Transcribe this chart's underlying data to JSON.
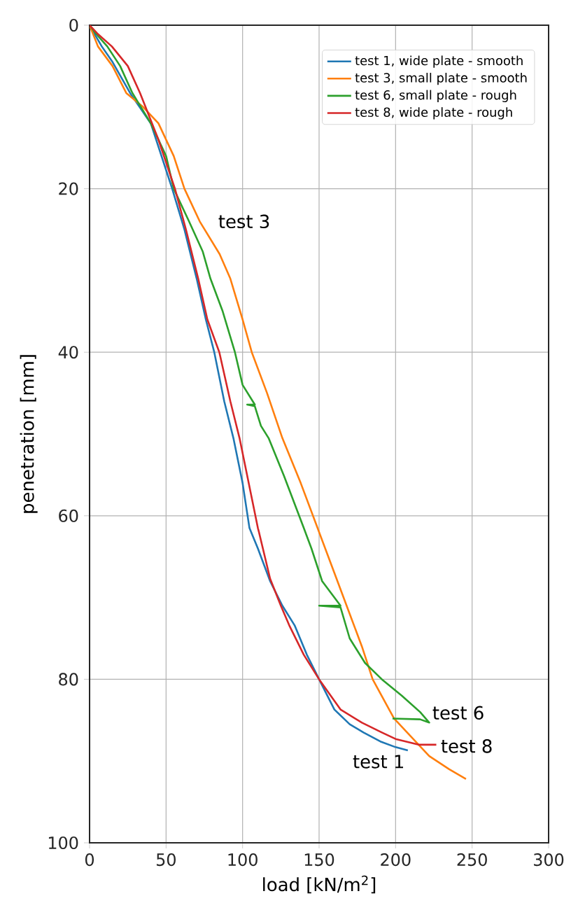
{
  "chart_data": {
    "type": "line",
    "xlabel": "load  [kN/m$^{2}$]",
    "ylabel": "penetration [mm]",
    "xlim": [
      0,
      300
    ],
    "ylim": [
      100,
      0
    ],
    "xticks": [
      0,
      50,
      100,
      150,
      200,
      250,
      300
    ],
    "yticks": [
      0,
      20,
      40,
      60,
      80,
      100
    ],
    "grid": true,
    "legend": "top right",
    "series": [
      {
        "name": "test 1, wide plate - smooth",
        "color": "#1f77b4",
        "x": [
          0,
          3,
          8,
          15,
          26.5,
          40,
          54,
          62,
          70,
          76,
          81.5,
          88,
          94,
          100,
          104.5,
          110,
          118,
          126,
          134,
          142,
          150,
          160,
          170,
          179,
          190,
          200,
          208
        ],
        "values": [
          0,
          1,
          2.6,
          4.5,
          8.3,
          12,
          20,
          25,
          31,
          36,
          40,
          46,
          50.5,
          56,
          61.5,
          64,
          68,
          71,
          73.4,
          77,
          80,
          83.7,
          85.5,
          86.5,
          87.6,
          88.3,
          88.7
        ]
      },
      {
        "name": "test 3, small plate - smooth",
        "color": "#ff7f0e",
        "x": [
          0,
          5.5,
          15,
          24,
          35,
          45,
          55,
          62,
          72,
          85,
          92,
          100,
          106,
          116,
          126,
          138,
          149,
          160,
          170,
          178,
          185,
          199,
          210,
          222,
          235,
          246
        ],
        "values": [
          0,
          2.6,
          5,
          8.3,
          10,
          12,
          16,
          20,
          24,
          28,
          31,
          36,
          40,
          45,
          50.5,
          56,
          61.5,
          67,
          72,
          76,
          80,
          84.8,
          87,
          89.4,
          91,
          92.2
        ]
      },
      {
        "name": "test 6, small plate - rough",
        "color": "#2ca02c",
        "x": [
          0,
          4,
          11.6,
          20,
          28,
          40,
          50,
          55,
          65,
          74,
          79,
          87,
          95,
          100,
          108,
          103,
          108,
          112,
          117,
          127,
          140,
          145,
          152,
          164,
          150,
          164,
          170,
          180,
          191,
          204,
          216,
          222,
          216,
          198
        ],
        "values": [
          0,
          1,
          2.6,
          5,
          8.3,
          12,
          16,
          20,
          24,
          27.7,
          31,
          35,
          40,
          44,
          46.4,
          46.4,
          46.6,
          49,
          50.5,
          55.1,
          61.5,
          64,
          68,
          71,
          71,
          71.2,
          75,
          78,
          80,
          82,
          84,
          85.3,
          84.9,
          84.8
        ]
      },
      {
        "name": "test 8, wide plate - rough",
        "color": "#d62728",
        "x": [
          0,
          5,
          14.6,
          25,
          33,
          45,
          55.8,
          63,
          71,
          77,
          84.8,
          92,
          98,
          104,
          110,
          110.7,
          118,
          125,
          130.5,
          140,
          150,
          164,
          178,
          191,
          200,
          215,
          226.6
        ],
        "values": [
          0,
          1,
          2.6,
          5,
          8.3,
          14,
          20,
          25,
          31,
          36,
          40,
          46,
          50.5,
          56,
          61.5,
          62,
          67.7,
          71,
          73.4,
          77,
          80,
          83.7,
          85.3,
          86.5,
          87.3,
          88,
          88
        ]
      }
    ],
    "annotations": [
      {
        "text": "test 3",
        "x": 72,
        "y": 24
      },
      {
        "text": "test 6",
        "x": 222,
        "y": 85.3
      },
      {
        "text": "test 8",
        "x": 226.6,
        "y": 88
      },
      {
        "text": "test 1",
        "x": 208,
        "y": 88.7
      }
    ]
  }
}
